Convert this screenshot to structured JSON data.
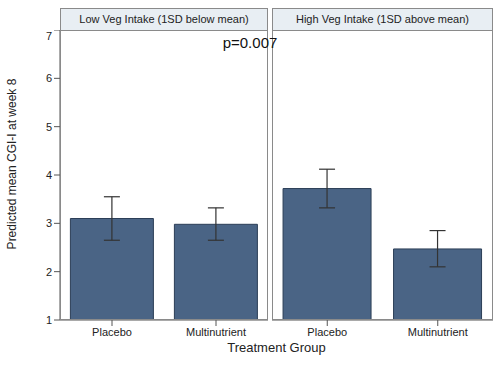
{
  "chart_data": {
    "type": "bar",
    "ylabel": "Predicted mean CGI-I at week 8",
    "xlabel": "Treatment Group",
    "annotation": "p=0.007",
    "color": "#4a6485",
    "ylim": [
      1,
      7
    ],
    "yticks": [
      1,
      2,
      3,
      4,
      5,
      6,
      7
    ],
    "grid": false,
    "categories": [
      "Placebo",
      "Multinutrient"
    ],
    "panels": [
      {
        "title": "Low Veg Intake (1SD below mean)",
        "values": [
          3.1,
          2.98
        ],
        "error_low": [
          2.65,
          2.65
        ],
        "error_high": [
          3.55,
          3.32
        ]
      },
      {
        "title": "High Veg Intake (1SD above mean)",
        "values": [
          3.72,
          2.47
        ],
        "error_low": [
          3.32,
          2.1
        ],
        "error_high": [
          4.12,
          2.85
        ]
      }
    ]
  }
}
